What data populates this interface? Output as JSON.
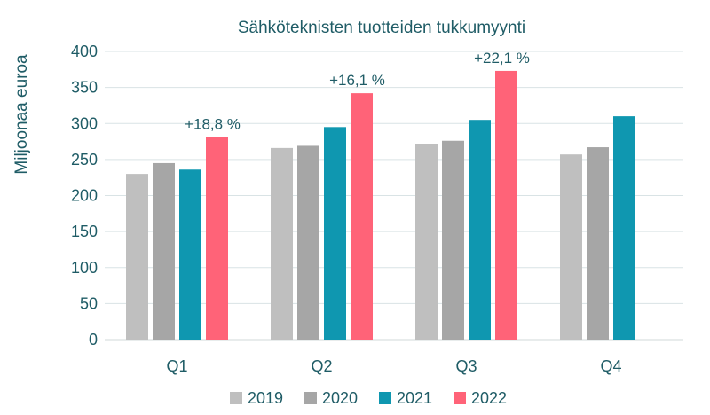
{
  "chart_data": {
    "type": "bar",
    "title": "Sähköteknisten tuotteiden tukkumyynti",
    "xlabel": "",
    "ylabel": "Miljoonaa euroa",
    "ylim": [
      0,
      400
    ],
    "yticks": [
      0,
      50,
      100,
      150,
      200,
      250,
      300,
      350,
      400
    ],
    "grid": true,
    "legend_position": "bottom",
    "categories": [
      "Q1",
      "Q2",
      "Q3",
      "Q4"
    ],
    "series": [
      {
        "name": "2019",
        "color": "#bfbfbf",
        "values": [
          230,
          266,
          272,
          257
        ]
      },
      {
        "name": "2020",
        "color": "#a6a6a6",
        "values": [
          245,
          269,
          276,
          267
        ]
      },
      {
        "name": "2021",
        "color": "#0f97b0",
        "values": [
          236,
          295,
          305,
          310
        ]
      },
      {
        "name": "2022",
        "color": "#ff6378",
        "values": [
          281,
          342,
          373,
          null
        ]
      }
    ],
    "annotations": [
      {
        "category": "Q1",
        "series": "2022",
        "text": "+18,8 %"
      },
      {
        "category": "Q2",
        "series": "2022",
        "text": "+16,1 %"
      },
      {
        "category": "Q3",
        "series": "2022",
        "text": "+22,1 %"
      }
    ]
  }
}
